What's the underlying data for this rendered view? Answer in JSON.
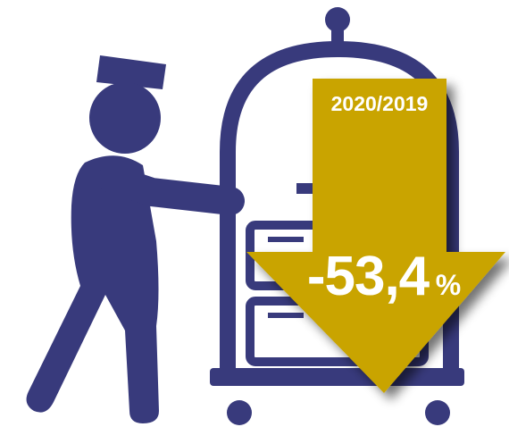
{
  "period": "2020/2019",
  "change": "-53,4",
  "unit": "%"
}
